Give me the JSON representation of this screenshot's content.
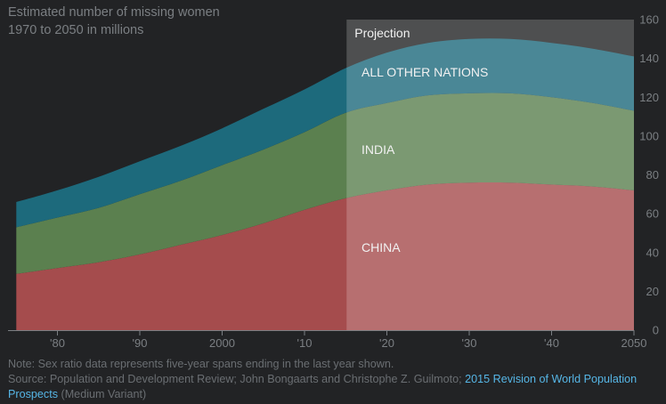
{
  "chart_data": {
    "type": "area",
    "stacked": true,
    "title": "Estimated number of missing women 1970 to 2050 in millions",
    "title_lines": [
      "Estimated number of missing women",
      "1970 to 2050 in millions"
    ],
    "x": [
      1975,
      1980,
      1985,
      1990,
      1995,
      2000,
      2005,
      2010,
      2015,
      2020,
      2025,
      2030,
      2035,
      2040,
      2045,
      2050
    ],
    "series": [
      {
        "name": "CHINA",
        "color": "#a54c4d",
        "values": [
          29,
          32,
          35,
          39,
          44,
          49,
          55,
          62,
          68,
          72,
          75,
          76,
          76,
          75,
          74,
          72
        ]
      },
      {
        "name": "INDIA",
        "color": "#5b804f",
        "values": [
          24,
          26,
          28,
          31,
          33,
          36,
          38,
          40,
          44,
          45,
          46,
          46,
          46,
          45,
          43,
          41
        ]
      },
      {
        "name": "ALL OTHER NATIONS",
        "color": "#1d6a7c",
        "values": [
          13,
          14,
          16,
          17,
          18,
          19,
          21,
          22,
          23,
          26,
          27,
          28,
          28,
          28,
          28,
          28
        ]
      }
    ],
    "x_ticks": [
      1980,
      1990,
      2000,
      2010,
      2020,
      2030,
      2040,
      2050
    ],
    "x_tick_labels": [
      "'80",
      "'90",
      "2000",
      "'10",
      "'20",
      "'30",
      "'40",
      "2050"
    ],
    "xlim": [
      1974,
      2050
    ],
    "ylim": [
      0,
      160
    ],
    "y_ticks": [
      0,
      20,
      40,
      60,
      80,
      100,
      120,
      140,
      160
    ],
    "y_axis_side": "right",
    "projection": {
      "label": "Projection",
      "from": 2015,
      "to": 2050
    },
    "colors": {
      "background": "#222325",
      "axis_text": "#7b7f83",
      "label_text": "#f1f1f1",
      "projection_overlay": "#ffffff"
    }
  },
  "footer": {
    "note": "Note: Sex ratio data represents five-year spans ending in the last year shown.",
    "source_prefix": "Source: Population and Development Review; John Bongaarts and Christophe Z. Guilmoto; ",
    "source_link": "2015 Revision of World Population Prospects",
    "source_suffix": " (Medium Variant)"
  }
}
